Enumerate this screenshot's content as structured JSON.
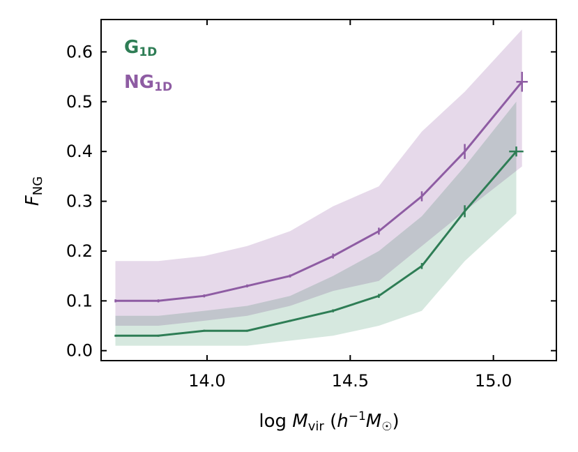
{
  "chart_data": {
    "type": "line",
    "xlabel": "log M_vir (h^-1 M_☉)",
    "xlabel_parts": {
      "log": "log",
      "M": "M",
      "vir": "vir",
      "paren_open": "(",
      "h": "h",
      "exp": "−1",
      "M2": "M",
      "sun": "☉",
      "paren_close": ")"
    },
    "ylabel": "F_NG",
    "ylabel_parts": {
      "F": "F",
      "sub": "NG"
    },
    "xlim": [
      13.63,
      15.22
    ],
    "ylim": [
      -0.02,
      0.665
    ],
    "xticks": [
      14.0,
      14.5,
      15.0
    ],
    "xtick_labels": [
      "14.0",
      "14.5",
      "15.0"
    ],
    "yticks": [
      0.0,
      0.1,
      0.2,
      0.3,
      0.4,
      0.5,
      0.6
    ],
    "ytick_labels": [
      "0.0",
      "0.1",
      "0.2",
      "0.3",
      "0.4",
      "0.5",
      "0.6"
    ],
    "legend": {
      "placement": "top-left",
      "entries": [
        {
          "main": "G",
          "sub": "1D",
          "color": "#2e7d55"
        },
        {
          "main": "NG",
          "sub": "1D",
          "color": "#8e5ca3"
        }
      ]
    },
    "series": [
      {
        "name": "NG1D",
        "color": "#8e5ca3",
        "band_color": "#e2d2e6",
        "x": [
          13.68,
          13.83,
          13.99,
          14.14,
          14.29,
          14.44,
          14.6,
          14.75,
          14.9,
          15.1
        ],
        "y": [
          0.1,
          0.1,
          0.11,
          0.13,
          0.15,
          0.19,
          0.24,
          0.31,
          0.4,
          0.54
        ],
        "yerr": [
          0.003,
          0.003,
          0.003,
          0.003,
          0.003,
          0.005,
          0.007,
          0.01,
          0.015,
          0.02
        ],
        "xerr_last": 0.02,
        "band_lo": [
          0.05,
          0.05,
          0.06,
          0.07,
          0.09,
          0.12,
          0.14,
          0.21,
          0.28,
          0.37
        ],
        "band_hi": [
          0.18,
          0.18,
          0.19,
          0.21,
          0.24,
          0.29,
          0.33,
          0.44,
          0.52,
          0.645
        ]
      },
      {
        "name": "G1D",
        "color": "#2e7d55",
        "band_color": "#cfe4d9",
        "x": [
          13.68,
          13.83,
          13.99,
          14.14,
          14.29,
          14.44,
          14.6,
          14.75,
          14.9,
          15.08
        ],
        "y": [
          0.03,
          0.03,
          0.04,
          0.04,
          0.06,
          0.08,
          0.11,
          0.17,
          0.28,
          0.4
        ],
        "yerr": [
          0.002,
          0.002,
          0.002,
          0.002,
          0.002,
          0.003,
          0.004,
          0.006,
          0.012,
          0.01
        ],
        "xerr_last": 0.025,
        "band_lo": [
          0.01,
          0.01,
          0.01,
          0.01,
          0.02,
          0.03,
          0.05,
          0.08,
          0.18,
          0.275
        ],
        "band_hi": [
          0.07,
          0.07,
          0.08,
          0.09,
          0.11,
          0.15,
          0.2,
          0.27,
          0.37,
          0.5
        ]
      }
    ]
  }
}
